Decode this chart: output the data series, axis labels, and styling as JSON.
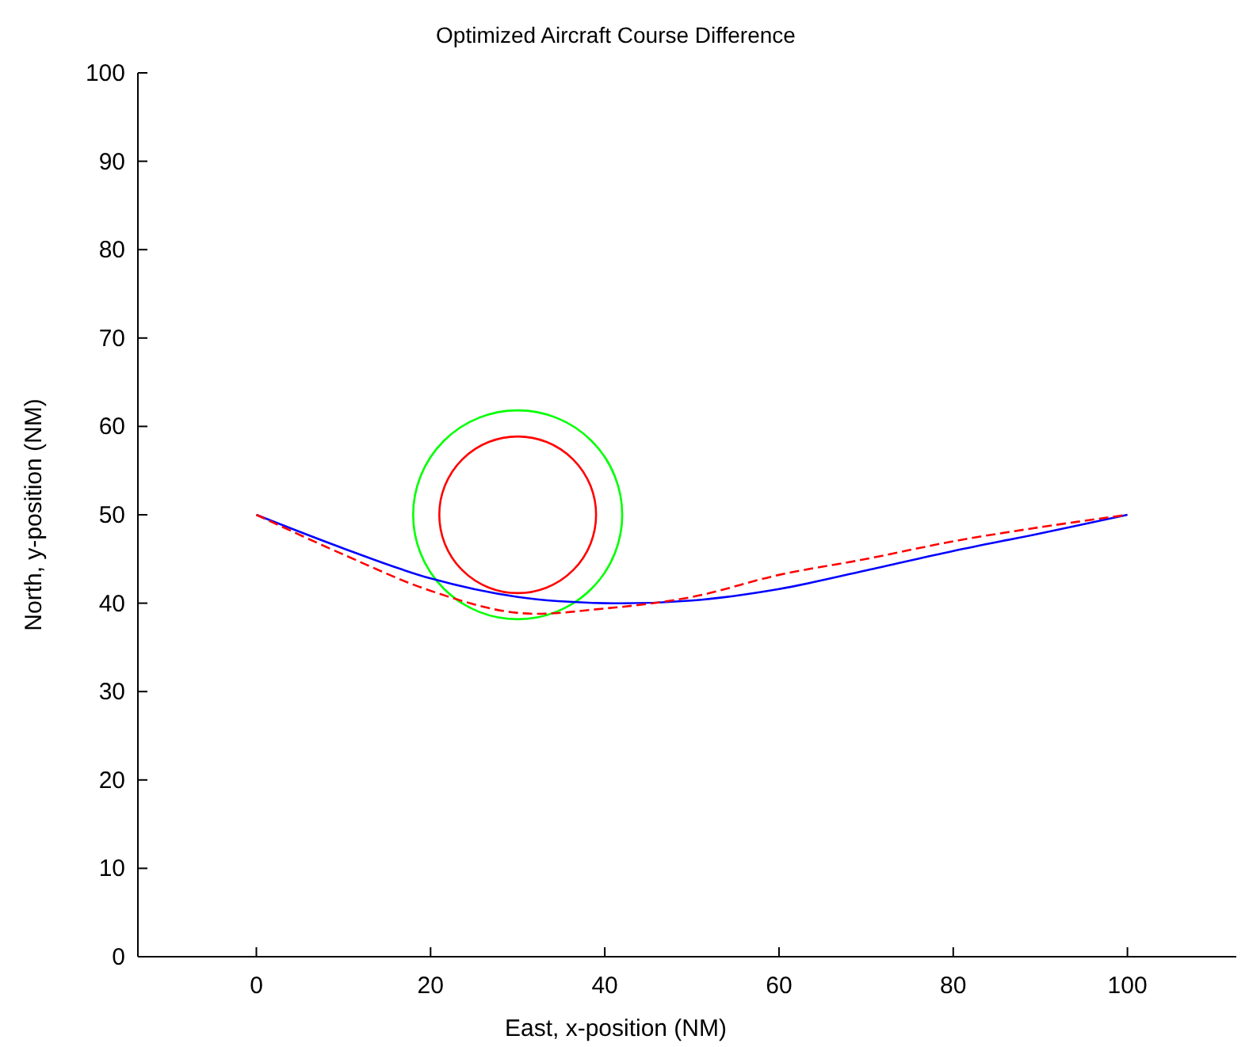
{
  "chart_data": {
    "type": "line",
    "title": "Optimized Aircraft Course Difference",
    "xlabel": "East, x-position (NM)",
    "ylabel": "North, y-position (NM)",
    "xlim": [
      -13.6,
      112.5
    ],
    "ylim": [
      0,
      100
    ],
    "xticks": [
      0,
      20,
      40,
      60,
      80,
      100
    ],
    "yticks": [
      0,
      10,
      20,
      30,
      40,
      50,
      60,
      70,
      80,
      90,
      100
    ],
    "grid": false,
    "series": [
      {
        "color": "#0000ff",
        "line_style": "solid",
        "x": [
          0,
          10,
          20,
          30,
          40,
          50,
          60,
          70,
          80,
          90,
          100
        ],
        "values": [
          50,
          46.2,
          42.8,
          40.7,
          40,
          40.3,
          41.6,
          43.7,
          45.9,
          47.9,
          50
        ]
      },
      {
        "color": "#ff0000",
        "line_style": "dashed",
        "x": [
          0,
          10,
          20,
          30,
          40,
          50,
          60,
          70,
          80,
          90,
          100
        ],
        "values": [
          50,
          45.5,
          41.4,
          38.9,
          39.4,
          40.7,
          43.2,
          45,
          47,
          48.6,
          50
        ]
      }
    ]
  }
}
